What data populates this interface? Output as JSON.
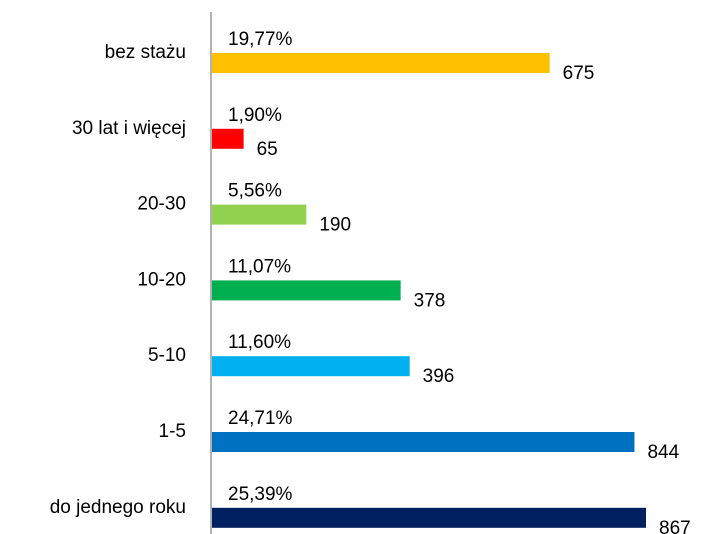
{
  "chart_data": {
    "type": "barh",
    "categories": [
      "bez stażu",
      "30 lat i więcej",
      "20-30",
      "10-20",
      "5-10",
      "1-5",
      "do jednego roku"
    ],
    "values": [
      675,
      65,
      190,
      378,
      396,
      844,
      867
    ],
    "percent_labels": [
      "19,77%",
      "1,90%",
      "5,56%",
      "11,07%",
      "11,60%",
      "24,71%",
      "25,39%"
    ],
    "colors": [
      "#ffc000",
      "#ff0000",
      "#92d050",
      "#00b050",
      "#00b0f0",
      "#0070c0",
      "#002060"
    ]
  }
}
